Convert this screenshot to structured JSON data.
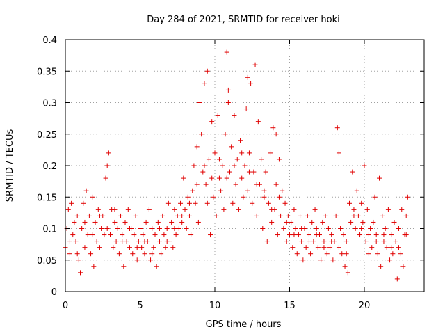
{
  "chart_data": {
    "type": "scatter",
    "title": "Day 284 of 2021, SRMTID for receiver hoki",
    "xlabel": "GPS time / hours",
    "ylabel": "SRMTID / TECUs",
    "xlim": [
      0,
      24
    ],
    "ylim": [
      0,
      0.4
    ],
    "xticks": [
      0,
      5,
      10,
      15,
      20
    ],
    "xtick_labels": [
      "0",
      "5",
      "10",
      "15",
      "20"
    ],
    "yticks": [
      0,
      0.05,
      0.1,
      0.15,
      0.2,
      0.25,
      0.3,
      0.35,
      0.4
    ],
    "ytick_labels": [
      "0",
      "0.05",
      "0.1",
      "0.15",
      "0.2",
      "0.25",
      "0.3",
      "0.35",
      "0.4"
    ],
    "grid": true,
    "marker": "+",
    "color": "#e00000",
    "series": [
      {
        "name": "SRMTID",
        "points": [
          [
            0.0,
            0.07
          ],
          [
            0.1,
            0.1
          ],
          [
            0.2,
            0.13
          ],
          [
            0.3,
            0.06
          ],
          [
            0.4,
            0.14
          ],
          [
            0.5,
            0.09
          ],
          [
            0.6,
            0.11
          ],
          [
            0.7,
            0.08
          ],
          [
            0.8,
            0.12
          ],
          [
            0.9,
            0.05
          ],
          [
            1.0,
            0.03
          ],
          [
            1.1,
            0.1
          ],
          [
            1.2,
            0.14
          ],
          [
            1.3,
            0.07
          ],
          [
            1.4,
            0.16
          ],
          [
            1.5,
            0.09
          ],
          [
            1.6,
            0.12
          ],
          [
            1.7,
            0.06
          ],
          [
            1.8,
            0.15
          ],
          [
            1.9,
            0.04
          ],
          [
            2.0,
            0.11
          ],
          [
            2.1,
            0.08
          ],
          [
            2.2,
            0.13
          ],
          [
            2.3,
            0.07
          ],
          [
            2.4,
            0.1
          ],
          [
            2.5,
            0.12
          ],
          [
            2.6,
            0.09
          ],
          [
            2.7,
            0.18
          ],
          [
            2.8,
            0.2
          ],
          [
            2.9,
            0.22
          ],
          [
            3.0,
            0.09
          ],
          [
            3.1,
            0.13
          ],
          [
            3.2,
            0.07
          ],
          [
            3.3,
            0.11
          ],
          [
            3.4,
            0.08
          ],
          [
            3.5,
            0.1
          ],
          [
            3.6,
            0.06
          ],
          [
            3.7,
            0.12
          ],
          [
            3.8,
            0.09
          ],
          [
            3.9,
            0.04
          ],
          [
            4.0,
            0.11
          ],
          [
            4.1,
            0.08
          ],
          [
            4.2,
            0.13
          ],
          [
            4.3,
            0.07
          ],
          [
            4.4,
            0.1
          ],
          [
            4.5,
            0.06
          ],
          [
            4.6,
            0.09
          ],
          [
            4.7,
            0.12
          ],
          [
            4.8,
            0.05
          ],
          [
            4.9,
            0.08
          ],
          [
            5.0,
            0.1
          ],
          [
            5.1,
            0.07
          ],
          [
            5.2,
            0.09
          ],
          [
            5.3,
            0.06
          ],
          [
            5.4,
            0.11
          ],
          [
            5.5,
            0.08
          ],
          [
            5.6,
            0.13
          ],
          [
            5.7,
            0.05
          ],
          [
            5.8,
            0.1
          ],
          [
            5.9,
            0.07
          ],
          [
            6.0,
            0.09
          ],
          [
            6.1,
            0.04
          ],
          [
            6.2,
            0.11
          ],
          [
            6.3,
            0.08
          ],
          [
            6.4,
            0.06
          ],
          [
            6.5,
            0.12
          ],
          [
            6.6,
            0.09
          ],
          [
            6.7,
            0.07
          ],
          [
            6.8,
            0.1
          ],
          [
            6.9,
            0.14
          ],
          [
            7.0,
            0.08
          ],
          [
            7.1,
            0.11
          ],
          [
            7.2,
            0.07
          ],
          [
            7.3,
            0.13
          ],
          [
            7.4,
            0.09
          ],
          [
            7.5,
            0.12
          ],
          [
            7.6,
            0.1
          ],
          [
            7.7,
            0.14
          ],
          [
            7.8,
            0.11
          ],
          [
            7.9,
            0.18
          ],
          [
            8.0,
            0.13
          ],
          [
            8.1,
            0.1
          ],
          [
            8.2,
            0.15
          ],
          [
            8.3,
            0.12
          ],
          [
            8.4,
            0.09
          ],
          [
            8.5,
            0.16
          ],
          [
            8.6,
            0.2
          ],
          [
            8.7,
            0.14
          ],
          [
            8.8,
            0.23
          ],
          [
            8.9,
            0.11
          ],
          [
            9.0,
            0.3
          ],
          [
            9.1,
            0.25
          ],
          [
            9.2,
            0.19
          ],
          [
            9.3,
            0.33
          ],
          [
            9.4,
            0.17
          ],
          [
            9.5,
            0.14
          ],
          [
            9.6,
            0.21
          ],
          [
            9.7,
            0.09
          ],
          [
            9.8,
            0.27
          ],
          [
            9.9,
            0.15
          ],
          [
            10.0,
            0.22
          ],
          [
            10.1,
            0.12
          ],
          [
            10.2,
            0.28
          ],
          [
            10.3,
            0.18
          ],
          [
            10.4,
            0.16
          ],
          [
            10.5,
            0.2
          ],
          [
            10.6,
            0.13
          ],
          [
            10.7,
            0.25
          ],
          [
            10.8,
            0.38
          ],
          [
            10.9,
            0.32
          ],
          [
            11.0,
            0.19
          ],
          [
            11.1,
            0.23
          ],
          [
            11.2,
            0.14
          ],
          [
            11.3,
            0.28
          ],
          [
            11.4,
            0.17
          ],
          [
            11.5,
            0.21
          ],
          [
            11.6,
            0.13
          ],
          [
            11.7,
            0.24
          ],
          [
            11.8,
            0.18
          ],
          [
            11.9,
            0.15
          ],
          [
            12.0,
            0.2
          ],
          [
            12.1,
            0.29
          ],
          [
            12.2,
            0.16
          ],
          [
            12.3,
            0.22
          ],
          [
            12.4,
            0.33
          ],
          [
            12.5,
            0.14
          ],
          [
            12.6,
            0.19
          ],
          [
            12.7,
            0.36
          ],
          [
            12.8,
            0.12
          ],
          [
            12.9,
            0.27
          ],
          [
            13.0,
            0.17
          ],
          [
            13.1,
            0.21
          ],
          [
            13.2,
            0.1
          ],
          [
            13.3,
            0.15
          ],
          [
            13.4,
            0.19
          ],
          [
            13.5,
            0.08
          ],
          [
            13.6,
            0.14
          ],
          [
            13.7,
            0.22
          ],
          [
            13.8,
            0.11
          ],
          [
            13.9,
            0.26
          ],
          [
            14.0,
            0.13
          ],
          [
            14.1,
            0.17
          ],
          [
            14.2,
            0.09
          ],
          [
            14.3,
            0.21
          ],
          [
            14.4,
            0.12
          ],
          [
            14.5,
            0.16
          ],
          [
            14.6,
            0.1
          ],
          [
            14.7,
            0.14
          ],
          [
            14.8,
            0.08
          ],
          [
            14.9,
            0.12
          ],
          [
            15.0,
            0.09
          ],
          [
            15.1,
            0.11
          ],
          [
            15.2,
            0.07
          ],
          [
            15.3,
            0.13
          ],
          [
            15.4,
            0.1
          ],
          [
            15.5,
            0.06
          ],
          [
            15.6,
            0.09
          ],
          [
            15.7,
            0.12
          ],
          [
            15.8,
            0.08
          ],
          [
            15.9,
            0.05
          ],
          [
            16.0,
            0.1
          ],
          [
            16.1,
            0.07
          ],
          [
            16.2,
            0.12
          ],
          [
            16.3,
            0.09
          ],
          [
            16.4,
            0.06
          ],
          [
            16.5,
            0.11
          ],
          [
            16.6,
            0.08
          ],
          [
            16.7,
            0.13
          ],
          [
            16.8,
            0.1
          ],
          [
            16.9,
            0.07
          ],
          [
            17.0,
            0.09
          ],
          [
            17.1,
            0.05
          ],
          [
            17.2,
            0.11
          ],
          [
            17.3,
            0.08
          ],
          [
            17.4,
            0.12
          ],
          [
            17.5,
            0.06
          ],
          [
            17.6,
            0.1
          ],
          [
            17.7,
            0.07
          ],
          [
            17.8,
            0.09
          ],
          [
            17.9,
            0.05
          ],
          [
            18.0,
            0.08
          ],
          [
            18.1,
            0.12
          ],
          [
            18.2,
            0.26
          ],
          [
            18.3,
            0.22
          ],
          [
            18.4,
            0.1
          ],
          [
            18.5,
            0.06
          ],
          [
            18.6,
            0.09
          ],
          [
            18.7,
            0.04
          ],
          [
            18.8,
            0.08
          ],
          [
            18.9,
            0.03
          ],
          [
            19.0,
            0.14
          ],
          [
            19.1,
            0.11
          ],
          [
            19.2,
            0.19
          ],
          [
            19.3,
            0.13
          ],
          [
            19.4,
            0.1
          ],
          [
            19.5,
            0.16
          ],
          [
            19.6,
            0.12
          ],
          [
            19.7,
            0.09
          ],
          [
            19.8,
            0.14
          ],
          [
            19.9,
            0.11
          ],
          [
            20.0,
            0.2
          ],
          [
            20.1,
            0.08
          ],
          [
            20.2,
            0.13
          ],
          [
            20.3,
            0.06
          ],
          [
            20.4,
            0.1
          ],
          [
            20.5,
            0.07
          ],
          [
            20.6,
            0.11
          ],
          [
            20.7,
            0.15
          ],
          [
            20.8,
            0.09
          ],
          [
            20.9,
            0.06
          ],
          [
            21.0,
            0.18
          ],
          [
            21.1,
            0.04
          ],
          [
            21.2,
            0.12
          ],
          [
            21.3,
            0.08
          ],
          [
            21.4,
            0.1
          ],
          [
            21.5,
            0.07
          ],
          [
            21.6,
            0.13
          ],
          [
            21.7,
            0.05
          ],
          [
            21.8,
            0.09
          ],
          [
            21.9,
            0.06
          ],
          [
            22.0,
            0.11
          ],
          [
            22.1,
            0.08
          ],
          [
            22.2,
            0.02
          ],
          [
            22.3,
            0.1
          ],
          [
            22.4,
            0.06
          ],
          [
            22.5,
            0.13
          ],
          [
            22.6,
            0.04
          ],
          [
            22.7,
            0.09
          ],
          [
            22.8,
            0.12
          ],
          [
            22.9,
            0.15
          ],
          [
            0.3,
            0.08
          ],
          [
            0.8,
            0.06
          ],
          [
            1.3,
            0.11
          ],
          [
            1.8,
            0.09
          ],
          [
            2.3,
            0.12
          ],
          [
            2.8,
            0.1
          ],
          [
            3.3,
            0.13
          ],
          [
            3.8,
            0.08
          ],
          [
            4.3,
            0.1
          ],
          [
            4.8,
            0.07
          ],
          [
            5.3,
            0.08
          ],
          [
            5.8,
            0.06
          ],
          [
            6.3,
            0.1
          ],
          [
            6.8,
            0.08
          ],
          [
            7.3,
            0.1
          ],
          [
            7.8,
            0.12
          ],
          [
            8.3,
            0.14
          ],
          [
            8.8,
            0.17
          ],
          [
            9.3,
            0.2
          ],
          [
            9.8,
            0.18
          ],
          [
            10.3,
            0.21
          ],
          [
            10.8,
            0.18
          ],
          [
            11.3,
            0.2
          ],
          [
            11.8,
            0.22
          ],
          [
            12.3,
            0.19
          ],
          [
            12.8,
            0.17
          ],
          [
            13.3,
            0.16
          ],
          [
            13.8,
            0.13
          ],
          [
            14.3,
            0.15
          ],
          [
            14.8,
            0.11
          ],
          [
            15.3,
            0.09
          ],
          [
            15.8,
            0.1
          ],
          [
            16.3,
            0.08
          ],
          [
            16.8,
            0.09
          ],
          [
            17.3,
            0.07
          ],
          [
            17.8,
            0.08
          ],
          [
            18.3,
            0.07
          ],
          [
            18.8,
            0.06
          ],
          [
            19.3,
            0.12
          ],
          [
            19.8,
            0.1
          ],
          [
            20.3,
            0.09
          ],
          [
            20.8,
            0.08
          ],
          [
            21.3,
            0.09
          ],
          [
            21.8,
            0.07
          ],
          [
            22.3,
            0.07
          ],
          [
            22.8,
            0.09
          ],
          [
            9.5,
            0.35
          ],
          [
            10.9,
            0.3
          ],
          [
            12.2,
            0.34
          ],
          [
            14.1,
            0.25
          ]
        ]
      }
    ]
  }
}
